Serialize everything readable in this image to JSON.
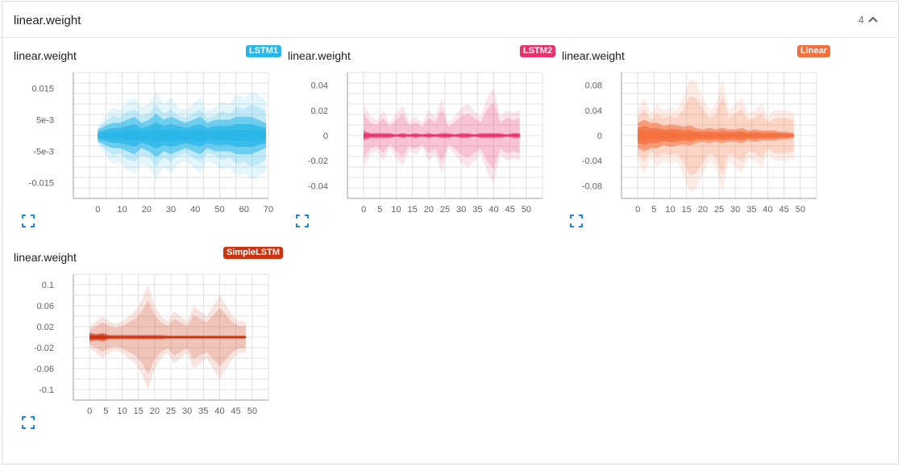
{
  "pane": {
    "title": "linear.weight",
    "count": "4"
  },
  "cards": [
    {
      "title": "linear.weight",
      "run": "LSTM1",
      "color": "#29b6e8",
      "chart_data": {
        "type": "area",
        "title": "linear.weight",
        "xlim": [
          -10,
          70
        ],
        "ylim": [
          -0.02,
          0.02
        ],
        "x_ticks": [
          0,
          10,
          20,
          30,
          40,
          50,
          60,
          70
        ],
        "y_ticks": [
          0.015,
          0.005,
          -0.005,
          -0.015
        ],
        "y_tick_labels": [
          "0.015",
          "5e-3",
          "-5e-3",
          "-0.015"
        ],
        "grid": true,
        "x": [
          0,
          3,
          6,
          9,
          12,
          15,
          18,
          21,
          24,
          27,
          30,
          33,
          36,
          39,
          42,
          45,
          48,
          51,
          54,
          57,
          60,
          63,
          66,
          69
        ],
        "outer": [
          0.003,
          0.006,
          0.009,
          0.008,
          0.011,
          0.012,
          0.009,
          0.01,
          0.014,
          0.01,
          0.012,
          0.009,
          0.008,
          0.01,
          0.012,
          0.008,
          0.009,
          0.011,
          0.01,
          0.013,
          0.012,
          0.014,
          0.013,
          0.011
        ],
        "inner": [
          0.002,
          0.003,
          0.004,
          0.004,
          0.005,
          0.006,
          0.004,
          0.005,
          0.007,
          0.005,
          0.006,
          0.005,
          0.004,
          0.005,
          0.006,
          0.004,
          0.005,
          0.005,
          0.005,
          0.006,
          0.006,
          0.006,
          0.005,
          0.004
        ]
      }
    },
    {
      "title": "linear.weight",
      "run": "LSTM2",
      "color": "#e8346e",
      "chart_data": {
        "type": "area",
        "title": "linear.weight",
        "xlim": [
          -5,
          55
        ],
        "ylim": [
          -0.05,
          0.05
        ],
        "x_ticks": [
          0,
          5,
          10,
          15,
          20,
          25,
          30,
          35,
          40,
          45,
          50
        ],
        "y_ticks": [
          0.04,
          0.02,
          0,
          -0.02,
          -0.04
        ],
        "y_tick_labels": [
          "0.04",
          "0.02",
          "0",
          "-0.02",
          "-0.04"
        ],
        "grid": true,
        "x": [
          0,
          2,
          4,
          6,
          8,
          10,
          12,
          14,
          16,
          18,
          20,
          22,
          24,
          26,
          28,
          30,
          32,
          34,
          36,
          38,
          40,
          42,
          44,
          46,
          48
        ],
        "outer": [
          0.025,
          0.015,
          0.012,
          0.02,
          0.01,
          0.018,
          0.024,
          0.012,
          0.015,
          0.01,
          0.02,
          0.015,
          0.03,
          0.01,
          0.015,
          0.022,
          0.025,
          0.02,
          0.015,
          0.03,
          0.038,
          0.015,
          0.02,
          0.018,
          0.02
        ],
        "inner": [
          0.004,
          0.002,
          0.002,
          0.002,
          0.002,
          0.001,
          0.002,
          0.001,
          0.002,
          0.001,
          0.002,
          0.001,
          0.002,
          0.002,
          0.001,
          0.002,
          0.002,
          0.001,
          0.002,
          0.002,
          0.002,
          0.002,
          0.001,
          0.002,
          0.002
        ]
      }
    },
    {
      "title": "linear.weight",
      "run": "Linear",
      "color": "#f4703e",
      "chart_data": {
        "type": "area",
        "title": "linear.weight",
        "xlim": [
          -5,
          55
        ],
        "ylim": [
          -0.1,
          0.1
        ],
        "x_ticks": [
          0,
          5,
          10,
          15,
          20,
          25,
          30,
          35,
          40,
          45,
          50
        ],
        "y_ticks": [
          0.08,
          0.04,
          0,
          -0.04,
          -0.08
        ],
        "y_tick_labels": [
          "0.08",
          "0.04",
          "0",
          "-0.04",
          "-0.08"
        ],
        "grid": true,
        "x": [
          0,
          2,
          4,
          6,
          8,
          10,
          12,
          14,
          16,
          18,
          20,
          22,
          24,
          26,
          28,
          30,
          32,
          34,
          36,
          38,
          40,
          42,
          44,
          46,
          48
        ],
        "outer": [
          0.04,
          0.06,
          0.035,
          0.05,
          0.04,
          0.045,
          0.04,
          0.06,
          0.09,
          0.085,
          0.06,
          0.04,
          0.05,
          0.09,
          0.04,
          0.05,
          0.06,
          0.035,
          0.04,
          0.05,
          0.03,
          0.04,
          0.04,
          0.04,
          0.035
        ],
        "inner": [
          0.02,
          0.025,
          0.02,
          0.02,
          0.015,
          0.018,
          0.016,
          0.014,
          0.016,
          0.012,
          0.01,
          0.012,
          0.01,
          0.012,
          0.01,
          0.01,
          0.012,
          0.008,
          0.01,
          0.008,
          0.008,
          0.008,
          0.006,
          0.006,
          0.004
        ]
      }
    },
    {
      "title": "linear.weight",
      "run": "SimpleLSTM",
      "color": "#cc3311",
      "chart_data": {
        "type": "area",
        "title": "linear.weight",
        "xlim": [
          -5,
          55
        ],
        "ylim": [
          -0.12,
          0.12
        ],
        "x_ticks": [
          0,
          5,
          10,
          15,
          20,
          25,
          30,
          35,
          40,
          45,
          50
        ],
        "y_ticks": [
          0.1,
          0.06,
          0.02,
          -0.02,
          -0.06,
          -0.1
        ],
        "y_tick_labels": [
          "0.1",
          "0.06",
          "0.02",
          "-0.02",
          "-0.06",
          "-0.1"
        ],
        "grid": true,
        "x": [
          0,
          2,
          4,
          6,
          8,
          10,
          12,
          14,
          16,
          18,
          20,
          22,
          24,
          26,
          28,
          30,
          32,
          34,
          36,
          38,
          40,
          42,
          44,
          46,
          48
        ],
        "outer": [
          0.02,
          0.03,
          0.04,
          0.03,
          0.025,
          0.03,
          0.04,
          0.05,
          0.07,
          0.1,
          0.06,
          0.04,
          0.03,
          0.05,
          0.04,
          0.03,
          0.06,
          0.05,
          0.04,
          0.06,
          0.08,
          0.06,
          0.04,
          0.03,
          0.03
        ],
        "inner": [
          0.008,
          0.006,
          0.008,
          0.004,
          0.004,
          0.004,
          0.004,
          0.004,
          0.004,
          0.004,
          0.004,
          0.004,
          0.003,
          0.003,
          0.003,
          0.003,
          0.003,
          0.003,
          0.003,
          0.003,
          0.003,
          0.003,
          0.003,
          0.003,
          0.003
        ]
      }
    }
  ]
}
